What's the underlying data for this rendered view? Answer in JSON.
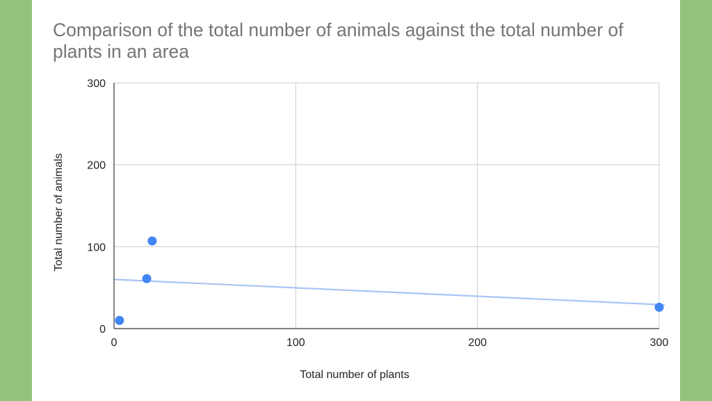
{
  "chart_data": {
    "type": "scatter",
    "title": "Comparison of the total number of animals against the total number of plants in an area",
    "xlabel": "Total number of plants",
    "ylabel": "Total number of animals",
    "xlim": [
      0,
      300
    ],
    "ylim": [
      0,
      300
    ],
    "xticks": [
      "0",
      "100",
      "200",
      "300"
    ],
    "yticks": [
      "0",
      "100",
      "200",
      "300"
    ],
    "grid": true,
    "legend": "none",
    "series": [
      {
        "points": [
          {
            "x": 3,
            "y": 10
          },
          {
            "x": 18,
            "y": 61
          },
          {
            "x": 21,
            "y": 107
          },
          {
            "x": 300,
            "y": 26
          }
        ],
        "color": "#4285f4"
      }
    ],
    "trendline": {
      "type": "linear",
      "color": "#a9c4f5",
      "start": {
        "x": 0,
        "y": 60
      },
      "end": {
        "x": 303,
        "y": 29
      }
    }
  }
}
